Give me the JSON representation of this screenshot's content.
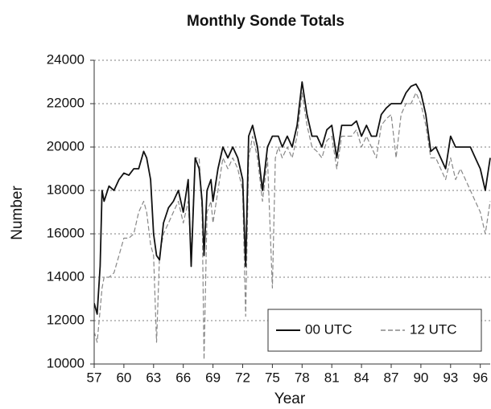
{
  "chart_data": {
    "type": "line",
    "title": "Monthly Sonde Totals",
    "x_label": "Year",
    "y_label": "Number",
    "x": [
      57,
      57.3,
      57.6,
      57.8,
      58,
      58.5,
      59,
      59.5,
      60,
      60.5,
      61,
      61.5,
      62,
      62.3,
      62.7,
      63,
      63.3,
      63.6,
      64,
      64.5,
      65,
      65.5,
      66,
      66.5,
      66.8,
      67.2,
      67.6,
      67.9,
      68.1,
      68.4,
      68.8,
      69,
      69.5,
      70,
      70.5,
      71,
      71.5,
      72,
      72.3,
      72.6,
      73,
      73.5,
      74,
      74.5,
      75,
      75.3,
      75.6,
      76,
      76.5,
      77,
      77.5,
      78,
      78.5,
      79,
      79.5,
      80,
      80.5,
      81,
      81.5,
      82,
      82.5,
      83,
      83.5,
      84,
      84.5,
      85,
      85.5,
      86,
      86.5,
      87,
      87.5,
      88,
      88.5,
      89,
      89.5,
      90,
      90.5,
      91,
      91.5,
      92,
      92.5,
      93,
      93.5,
      94,
      94.5,
      95,
      95.5,
      96,
      96.5,
      97
    ],
    "series": [
      {
        "name": "00 UTC",
        "color": "#111111",
        "dashed": false,
        "values": [
          12800,
          12300,
          14500,
          18000,
          17500,
          18200,
          18000,
          18500,
          18800,
          18700,
          19000,
          19000,
          19800,
          19500,
          18500,
          16000,
          15000,
          14800,
          16500,
          17200,
          17500,
          18000,
          17000,
          18500,
          14500,
          19500,
          19000,
          17500,
          15000,
          18000,
          18500,
          17500,
          19000,
          20000,
          19500,
          20000,
          19500,
          18500,
          14500,
          20500,
          21000,
          20000,
          18000,
          20000,
          20500,
          20500,
          20500,
          20000,
          20500,
          20000,
          21000,
          23000,
          21500,
          20500,
          20500,
          20000,
          20800,
          21000,
          19500,
          21000,
          21000,
          21000,
          21200,
          20500,
          21000,
          20500,
          20500,
          21500,
          21800,
          22000,
          22000,
          22000,
          22500,
          22800,
          22900,
          22500,
          21500,
          19800,
          20000,
          19500,
          19000,
          20500,
          20000,
          20000,
          20000,
          20000,
          19500,
          19000,
          18000,
          19500
        ]
      },
      {
        "name": "12 UTC",
        "color": "#888888",
        "dashed": true,
        "values": [
          11500,
          11000,
          12500,
          13500,
          14000,
          14000,
          14200,
          15000,
          15800,
          15800,
          16000,
          17000,
          17500,
          17000,
          15500,
          15000,
          11000,
          15000,
          16000,
          16500,
          17000,
          17500,
          16500,
          17500,
          15000,
          19500,
          19500,
          17000,
          10200,
          17000,
          17500,
          16500,
          18000,
          19500,
          19000,
          19500,
          19000,
          18000,
          12200,
          19500,
          20500,
          19500,
          17500,
          19500,
          13500,
          19500,
          20000,
          19500,
          20000,
          19500,
          20500,
          22500,
          21000,
          20000,
          19800,
          19500,
          20300,
          20500,
          19000,
          20500,
          20500,
          20500,
          20800,
          20000,
          20500,
          20000,
          19500,
          21000,
          21300,
          21500,
          19500,
          21500,
          22000,
          22000,
          22500,
          22000,
          21000,
          19500,
          19500,
          19000,
          18500,
          19500,
          18500,
          19000,
          18500,
          18000,
          17500,
          17000,
          16000,
          17500
        ]
      }
    ],
    "xlim": [
      57,
      97
    ],
    "xticks": [
      57,
      60,
      63,
      66,
      69,
      72,
      75,
      78,
      81,
      84,
      87,
      90,
      93,
      96
    ],
    "ylim": [
      10000,
      24000
    ],
    "yticks": [
      10000,
      12000,
      14000,
      16000,
      18000,
      20000,
      22000,
      24000
    ],
    "grid": true,
    "legend": "lower right"
  }
}
